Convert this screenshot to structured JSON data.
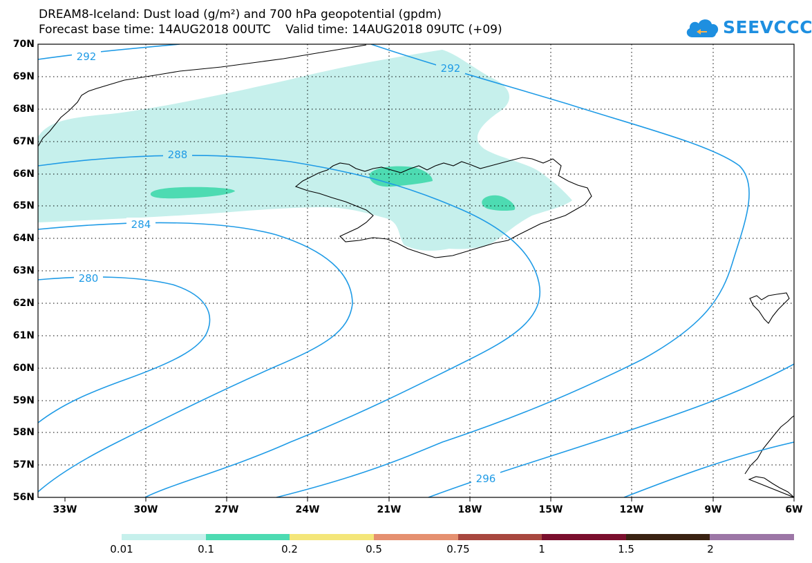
{
  "title": {
    "line1": "DREAM8-Iceland: Dust load (g/m²) and 700 hPa geopotential (gpdm)",
    "line2": "Forecast base time: 14AUG2018 00UTC    Valid time: 14AUG2018 09UTC (+09)"
  },
  "logo": {
    "text": "SEEVCCC",
    "icon": "cloud-icon",
    "color": "#1e8fe0"
  },
  "map": {
    "lat_labels": [
      "70N",
      "69N",
      "68N",
      "67N",
      "66N",
      "65N",
      "64N",
      "63N",
      "62N",
      "61N",
      "60N",
      "59N",
      "58N",
      "57N",
      "56N"
    ],
    "lon_labels": [
      "33W",
      "30W",
      "27W",
      "24W",
      "21W",
      "18W",
      "15W",
      "12W",
      "9W",
      "6W"
    ],
    "contour_labels": [
      "292",
      "292",
      "288",
      "284",
      "280",
      "296"
    ],
    "contour_color": "#1f9be6",
    "dust_light_color": "#c6f0ec",
    "dust_medium_color": "#4ddbb2"
  },
  "colorbar": {
    "labels": [
      "0.01",
      "0.1",
      "0.2",
      "0.5",
      "0.75",
      "1",
      "1.5",
      "2"
    ],
    "colors": [
      "#c6f0ec",
      "#4ddbb2",
      "#f4e679",
      "#e59070",
      "#a8473f",
      "#7a0f2d",
      "#3a2212",
      "#9c76a6"
    ]
  }
}
